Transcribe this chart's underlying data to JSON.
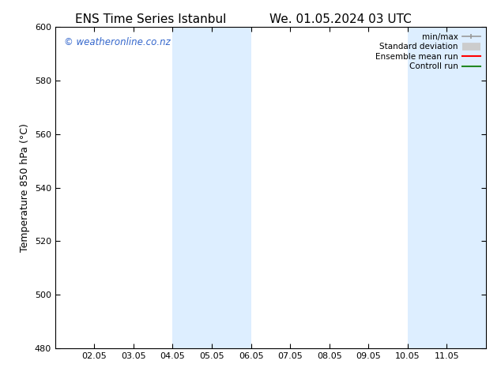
{
  "title_left": "ENS Time Series Istanbul",
  "title_right": "We. 01.05.2024 03 UTC",
  "ylabel": "Temperature 850 hPa (°C)",
  "ylim": [
    480,
    600
  ],
  "yticks": [
    480,
    500,
    520,
    540,
    560,
    580,
    600
  ],
  "xtick_labels": [
    "02.05",
    "03.05",
    "04.05",
    "05.05",
    "06.05",
    "07.05",
    "08.05",
    "09.05",
    "10.05",
    "11.05"
  ],
  "xlim_start_day": 1,
  "xlim_end_day": 12,
  "shaded_bands": [
    {
      "x0_day": 4,
      "x1_day": 6,
      "color": "#ddeeff"
    },
    {
      "x0_day": 10,
      "x1_day": 12,
      "color": "#ddeeff"
    }
  ],
  "watermark_text": "© weatheronline.co.nz",
  "watermark_color": "#3366cc",
  "background_color": "#ffffff",
  "title_fontsize": 11,
  "axis_fontsize": 9,
  "tick_fontsize": 8
}
